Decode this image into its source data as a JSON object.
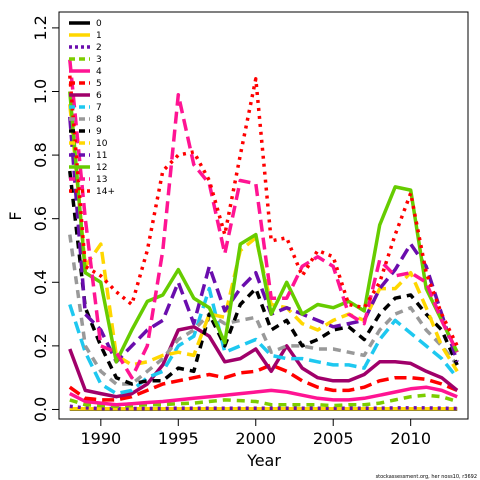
{
  "chart_data": {
    "type": "line",
    "title": "",
    "xlabel": "Year",
    "ylabel": "F",
    "xlim": [
      1987.3,
      2013.7
    ],
    "ylim": [
      -0.03,
      1.25
    ],
    "xticks": [
      1990,
      1995,
      2000,
      2005,
      2010
    ],
    "yticks": [
      0.0,
      0.2,
      0.4,
      0.6,
      0.8,
      1.0,
      1.2
    ],
    "ytick_labels": [
      "0.0",
      "0.2",
      "0.4",
      "0.6",
      "0.8",
      "1.0",
      "1.2"
    ],
    "grid": false,
    "legend_position": "top-left",
    "footnote": "stockassessment.org, her noss10, r3692",
    "x": [
      1988,
      1989,
      1990,
      1991,
      1992,
      1993,
      1994,
      1995,
      1996,
      1997,
      1998,
      1999,
      2000,
      2001,
      2002,
      2003,
      2004,
      2005,
      2006,
      2007,
      2008,
      2009,
      2010,
      2011,
      2012,
      2013
    ],
    "series": [
      {
        "name": "0",
        "color": "#000000",
        "dash": "solid",
        "values": [
          0.001,
          0.001,
          0.001,
          0.001,
          0.001,
          0.001,
          0.001,
          0.001,
          0.001,
          0.001,
          0.001,
          0.001,
          0.001,
          0.001,
          0.001,
          0.001,
          0.001,
          0.001,
          0.001,
          0.001,
          0.001,
          0.001,
          0.001,
          0.001,
          0.001,
          0.001
        ]
      },
      {
        "name": "1",
        "color": "#FFD700",
        "dash": "solid",
        "values": [
          0.002,
          0.002,
          0.002,
          0.002,
          0.002,
          0.002,
          0.002,
          0.002,
          0.002,
          0.002,
          0.002,
          0.002,
          0.002,
          0.002,
          0.002,
          0.002,
          0.002,
          0.002,
          0.002,
          0.002,
          0.002,
          0.002,
          0.002,
          0.002,
          0.002,
          0.002
        ]
      },
      {
        "name": "2",
        "color": "#6A0DAD",
        "dash": "dot",
        "values": [
          0.01,
          0.005,
          0.003,
          0.003,
          0.003,
          0.003,
          0.003,
          0.004,
          0.004,
          0.004,
          0.004,
          0.004,
          0.004,
          0.004,
          0.004,
          0.004,
          0.004,
          0.004,
          0.004,
          0.004,
          0.004,
          0.005,
          0.005,
          0.005,
          0.004,
          0.003
        ]
      },
      {
        "name": "3",
        "color": "#7CCD00",
        "dash": "dash",
        "values": [
          0.03,
          0.015,
          0.012,
          0.01,
          0.012,
          0.015,
          0.015,
          0.018,
          0.02,
          0.025,
          0.03,
          0.028,
          0.025,
          0.015,
          0.015,
          0.015,
          0.015,
          0.012,
          0.015,
          0.015,
          0.02,
          0.03,
          0.04,
          0.045,
          0.04,
          0.025
        ]
      },
      {
        "name": "4",
        "color": "#FF1493",
        "dash": "solid",
        "values": [
          0.05,
          0.025,
          0.02,
          0.015,
          0.018,
          0.022,
          0.025,
          0.03,
          0.035,
          0.04,
          0.045,
          0.05,
          0.055,
          0.06,
          0.055,
          0.045,
          0.035,
          0.03,
          0.03,
          0.035,
          0.045,
          0.055,
          0.065,
          0.07,
          0.06,
          0.04
        ]
      },
      {
        "name": "5",
        "color": "#FF0000",
        "dash": "longdash",
        "values": [
          0.07,
          0.035,
          0.03,
          0.03,
          0.04,
          0.06,
          0.08,
          0.09,
          0.1,
          0.11,
          0.1,
          0.115,
          0.12,
          0.14,
          0.12,
          0.09,
          0.07,
          0.06,
          0.06,
          0.07,
          0.09,
          0.1,
          0.1,
          0.095,
          0.08,
          0.06
        ]
      },
      {
        "name": "6",
        "color": "#A0006A",
        "dash": "solid",
        "values": [
          0.19,
          0.06,
          0.05,
          0.04,
          0.05,
          0.08,
          0.14,
          0.25,
          0.26,
          0.23,
          0.15,
          0.16,
          0.19,
          0.12,
          0.2,
          0.13,
          0.1,
          0.09,
          0.09,
          0.11,
          0.15,
          0.15,
          0.145,
          0.12,
          0.1,
          0.06
        ]
      },
      {
        "name": "7",
        "color": "#1EC8F0",
        "dash": "longdash",
        "values": [
          0.33,
          0.18,
          0.08,
          0.05,
          0.06,
          0.1,
          0.12,
          0.2,
          0.23,
          0.38,
          0.18,
          0.2,
          0.22,
          0.17,
          0.16,
          0.16,
          0.15,
          0.14,
          0.14,
          0.13,
          0.22,
          0.28,
          0.24,
          0.2,
          0.16,
          0.1
        ]
      },
      {
        "name": "8",
        "color": "#999999",
        "dash": "dash",
        "values": [
          0.55,
          0.2,
          0.12,
          0.08,
          0.08,
          0.12,
          0.16,
          0.22,
          0.25,
          0.3,
          0.27,
          0.28,
          0.29,
          0.18,
          0.2,
          0.2,
          0.19,
          0.19,
          0.18,
          0.17,
          0.25,
          0.3,
          0.32,
          0.25,
          0.2,
          0.14
        ]
      },
      {
        "name": "9",
        "color": "#000000",
        "dash": "dash",
        "values": [
          0.75,
          0.32,
          0.2,
          0.1,
          0.08,
          0.09,
          0.09,
          0.13,
          0.12,
          0.3,
          0.2,
          0.33,
          0.38,
          0.25,
          0.28,
          0.2,
          0.22,
          0.25,
          0.26,
          0.22,
          0.3,
          0.35,
          0.36,
          0.3,
          0.25,
          0.14
        ]
      },
      {
        "name": "10",
        "color": "#FFD700",
        "dash": "longdash",
        "values": [
          0.96,
          0.45,
          0.52,
          0.17,
          0.14,
          0.15,
          0.17,
          0.18,
          0.17,
          0.3,
          0.29,
          0.5,
          0.54,
          0.33,
          0.32,
          0.27,
          0.25,
          0.28,
          0.3,
          0.28,
          0.38,
          0.38,
          0.43,
          0.32,
          0.2,
          0.12
        ]
      },
      {
        "name": "11",
        "color": "#6A0DAD",
        "dash": "longdash",
        "values": [
          0.92,
          0.3,
          0.25,
          0.15,
          0.2,
          0.25,
          0.28,
          0.4,
          0.27,
          0.45,
          0.31,
          0.38,
          0.43,
          0.3,
          0.32,
          0.3,
          0.28,
          0.26,
          0.27,
          0.28,
          0.38,
          0.44,
          0.52,
          0.45,
          0.3,
          0.15
        ]
      },
      {
        "name": "12",
        "color": "#66CC00",
        "dash": "solid",
        "values": [
          1.0,
          0.43,
          0.4,
          0.15,
          0.25,
          0.34,
          0.36,
          0.44,
          0.35,
          0.32,
          0.21,
          0.52,
          0.55,
          0.3,
          0.4,
          0.3,
          0.33,
          0.32,
          0.34,
          0.31,
          0.58,
          0.7,
          0.69,
          0.38,
          0.28,
          0.18
        ]
      },
      {
        "name": "13",
        "color": "#FF1493",
        "dash": "longdash",
        "values": [
          1.1,
          0.6,
          0.2,
          0.18,
          0.1,
          0.2,
          0.5,
          0.99,
          0.77,
          0.71,
          0.49,
          0.72,
          0.71,
          0.35,
          0.35,
          0.45,
          0.48,
          0.45,
          0.3,
          0.27,
          0.47,
          0.42,
          0.43,
          0.4,
          0.28,
          0.18
        ]
      },
      {
        "name": "14+",
        "color": "#FF0000",
        "dash": "dot",
        "values": [
          1.05,
          0.45,
          0.42,
          0.37,
          0.33,
          0.5,
          0.75,
          0.8,
          0.81,
          0.72,
          0.55,
          0.8,
          1.04,
          0.53,
          0.54,
          0.42,
          0.5,
          0.48,
          0.33,
          0.32,
          0.4,
          0.55,
          0.68,
          0.43,
          0.3,
          0.2
        ]
      }
    ]
  }
}
